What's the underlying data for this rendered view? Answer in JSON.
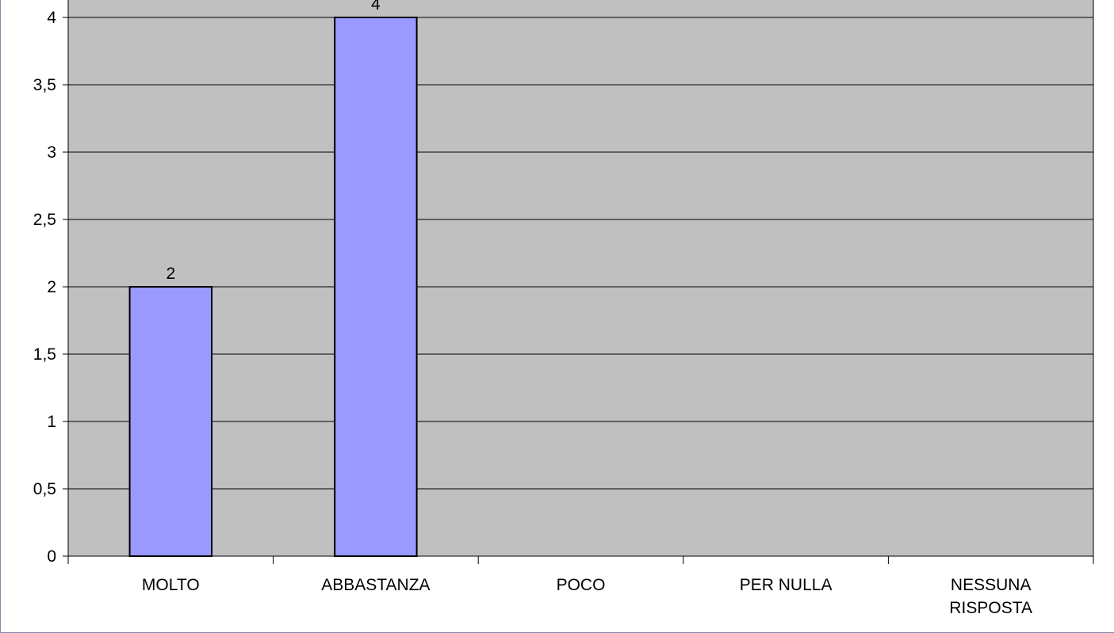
{
  "chart_data": {
    "type": "bar",
    "categories": [
      "MOLTO",
      "ABBASTANZA",
      "POCO",
      "PER NULLA",
      "NESSUNA RISPOSTA"
    ],
    "category_lines": [
      [
        "MOLTO"
      ],
      [
        "ABBASTANZA"
      ],
      [
        "POCO"
      ],
      [
        "PER NULLA"
      ],
      [
        "NESSUNA",
        "RISPOSTA"
      ]
    ],
    "values": [
      2,
      4,
      null,
      null,
      null
    ],
    "data_labels": [
      "2",
      "4",
      "",
      "",
      ""
    ],
    "ylim": [
      0,
      4
    ],
    "yticks": [
      0,
      0.5,
      1,
      1.5,
      2,
      2.5,
      3,
      3.5,
      4
    ],
    "ytick_labels": [
      "0",
      "0,5",
      "1",
      "1,5",
      "2",
      "2,5",
      "3",
      "3,5",
      "4"
    ],
    "title": "",
    "xlabel": "",
    "ylabel": "",
    "grid": true,
    "legend": "none",
    "colors": {
      "bar_fill": "#9999ff",
      "bar_stroke": "#000000",
      "plot_background": "#c0c0c0",
      "grid": "#000000",
      "frame_border": "#7f8ea8"
    }
  }
}
